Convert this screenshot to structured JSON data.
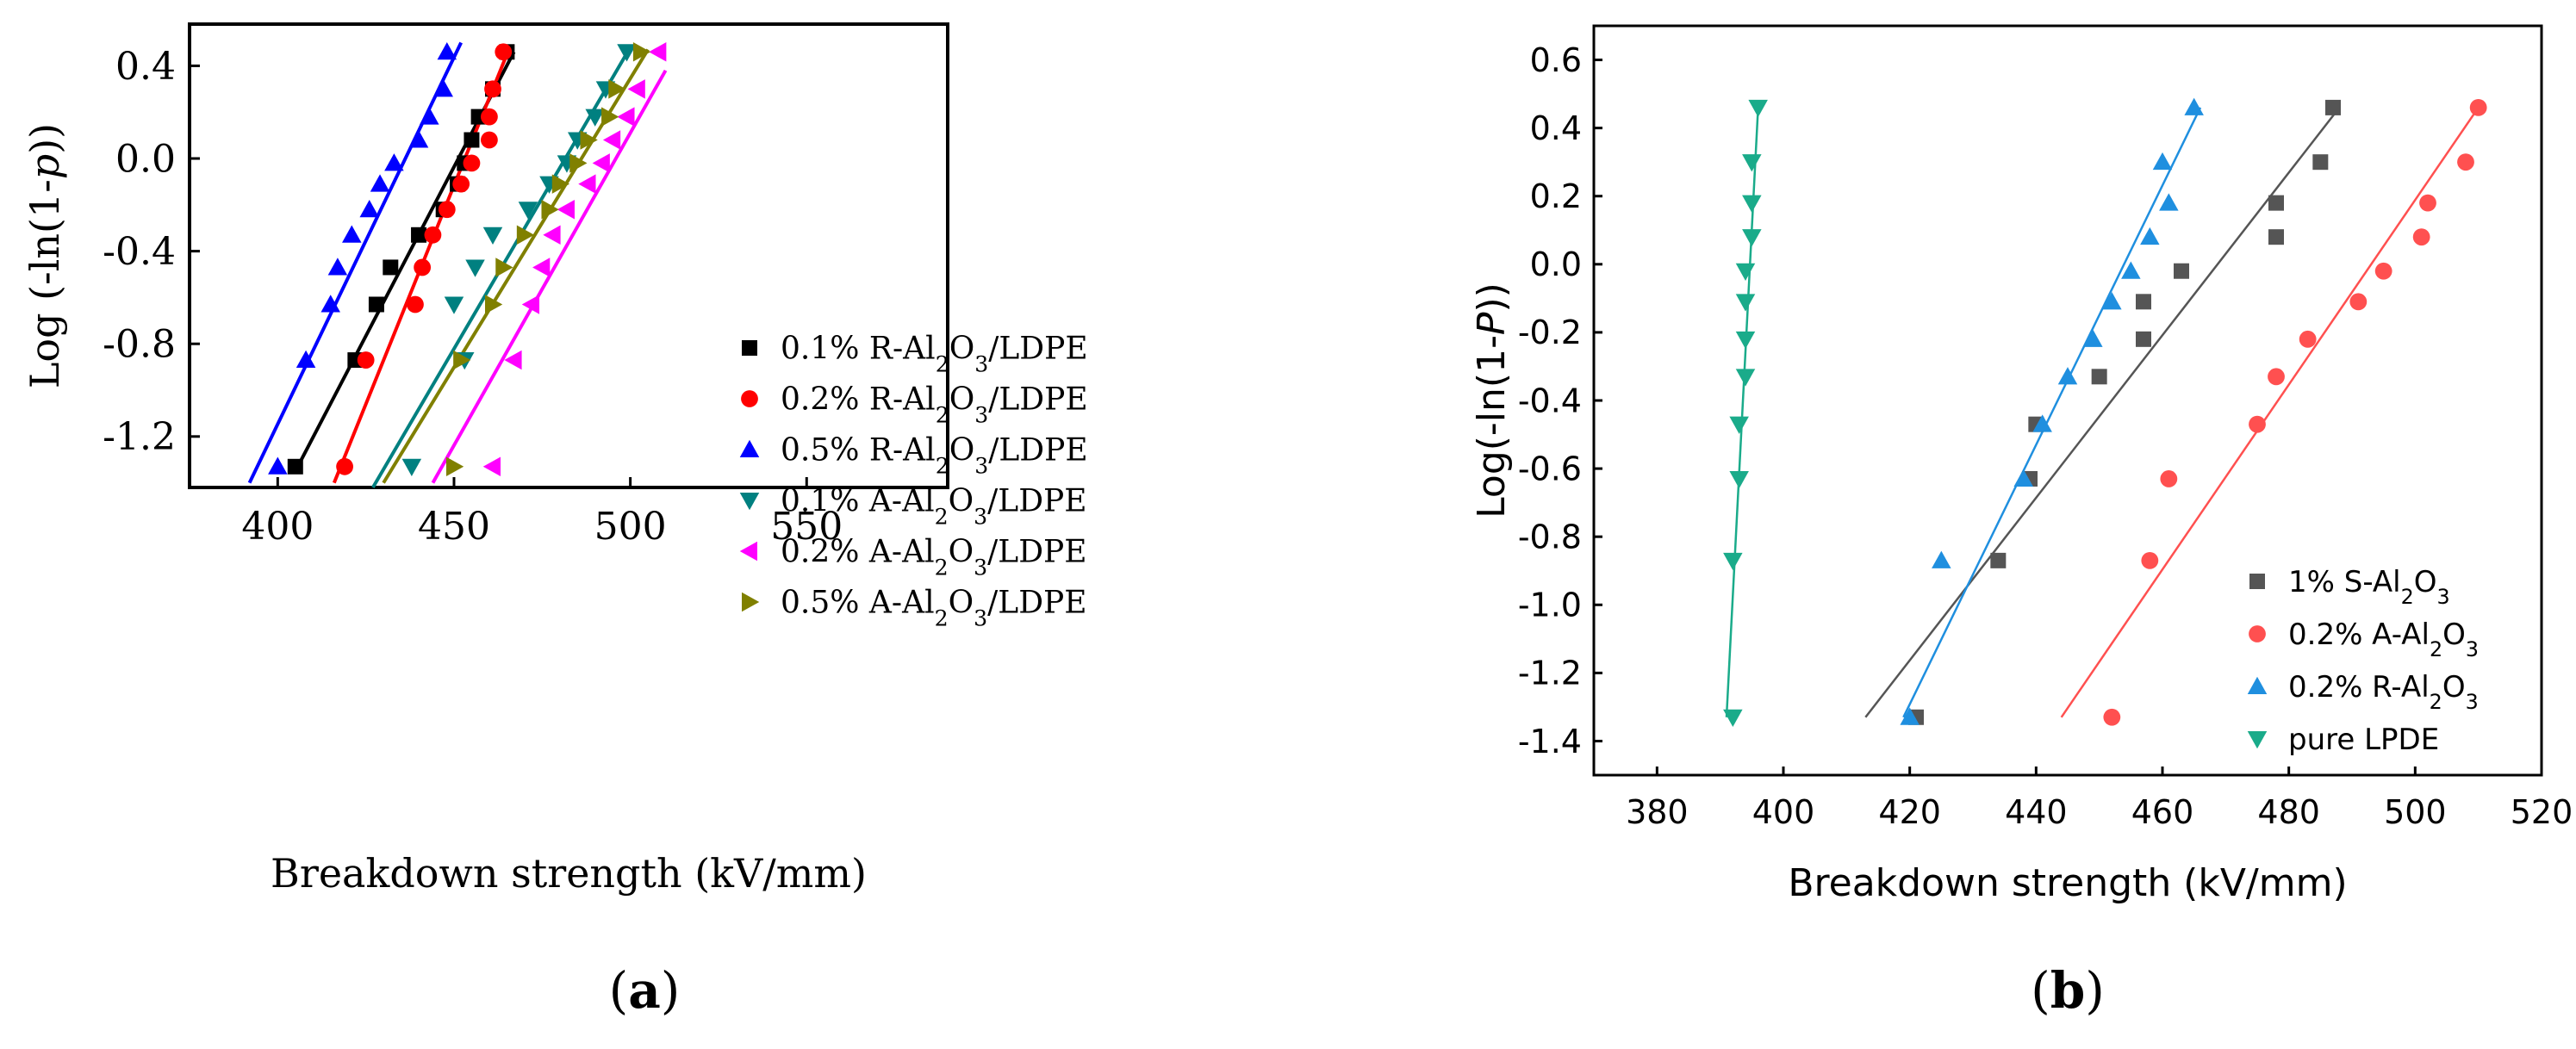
{
  "chart_data": [
    {
      "type": "scatter",
      "panel_label": "(a)",
      "xlabel": "Breakdown strength (kV/mm)",
      "ylabel_prefix": "Log (-ln(1-",
      "ylabel_var": "p",
      "ylabel_suffix": "))",
      "xlim": [
        375,
        590
      ],
      "ylim": [
        -1.42,
        0.58
      ],
      "xticks": [
        400,
        450,
        500,
        550
      ],
      "yticks": [
        -1.2,
        -0.8,
        -0.4,
        0.0,
        0.4
      ],
      "ytick_labels": [
        "-1.2",
        "-0.8",
        "-0.4",
        "0.0",
        "0.4"
      ],
      "y_levels": [
        -1.33,
        -0.87,
        -0.63,
        -0.47,
        -0.33,
        -0.22,
        -0.11,
        -0.02,
        0.08,
        0.18,
        0.3,
        0.46
      ],
      "series": [
        {
          "name": "0.1% R-Al2O3/LDPE",
          "pre": "0.1% R-Al",
          "sub": "2",
          "mid": "O",
          "sub2": "3",
          "post": "/LDPE",
          "color": "#000000",
          "marker": "square",
          "x": [
            405,
            422,
            428,
            432,
            440,
            447,
            451,
            453,
            455,
            457,
            461,
            465
          ],
          "fit": [
            [
              405,
              -1.35
            ],
            [
              467,
              0.46
            ]
          ]
        },
        {
          "name": "0.2% R-Al2O3/LDPE",
          "pre": "0.2% R-Al",
          "sub": "2",
          "mid": "O",
          "sub2": "3",
          "post": "/LDPE",
          "color": "#ff0000",
          "marker": "circle",
          "x": [
            419,
            425,
            439,
            441,
            444,
            448,
            452,
            455,
            460,
            460,
            461,
            464
          ],
          "fit": [
            [
              416,
              -1.4
            ],
            [
              465,
              0.45
            ]
          ]
        },
        {
          "name": "0.5% R-Al2O3/LDPE",
          "pre": "0.5% R-Al",
          "sub": "2",
          "mid": "O",
          "sub2": "3",
          "post": "/LDPE",
          "color": "#0000ff",
          "marker": "triangle-up",
          "x": [
            400,
            408,
            415,
            417,
            421,
            426,
            429,
            433,
            440,
            443,
            447,
            448
          ],
          "fit": [
            [
              392,
              -1.4
            ],
            [
              452,
              0.5
            ]
          ]
        },
        {
          "name": "0.1% A-Al2O3/LDPE",
          "pre": "0.1% A-Al",
          "sub": "2",
          "mid": "O",
          "sub2": "3",
          "post": "/LDPE",
          "color": "#008080",
          "marker": "triangle-down",
          "x": [
            438,
            453,
            450,
            456,
            461,
            471,
            477,
            482,
            485,
            490,
            493,
            499
          ],
          "fit": [
            [
              427,
              -1.42
            ],
            [
              500,
              0.48
            ]
          ]
        },
        {
          "name": "0.2% A-Al2O3/LDPE",
          "pre": "0.2% A-Al",
          "sub": "2",
          "mid": "O",
          "sub2": "3",
          "post": "/LDPE",
          "color": "#ff00ff",
          "marker": "triangle-left",
          "x": [
            461,
            467,
            472,
            475,
            478,
            482,
            488,
            492,
            495,
            499,
            502,
            508
          ],
          "fit": [
            [
              444,
              -1.4
            ],
            [
              510,
              0.38
            ]
          ]
        },
        {
          "name": "0.5% A-Al2O3/LDPE",
          "pre": "0.5% A-Al",
          "sub": "2",
          "mid": "O",
          "sub2": "3",
          "post": "/LDPE",
          "color": "#808000",
          "marker": "triangle-right",
          "x": [
            450,
            452,
            461,
            464,
            470,
            477,
            480,
            485,
            488,
            494,
            496,
            503
          ],
          "fit": [
            [
              430,
              -1.4
            ],
            [
              505,
              0.47
            ]
          ]
        }
      ]
    },
    {
      "type": "scatter",
      "panel_label": "(b)",
      "xlabel": "Breakdown strength (kV/mm)",
      "ylabel_prefix": "Log(-ln(1-",
      "ylabel_var": "P",
      "ylabel_suffix": "))",
      "xlim": [
        370,
        520
      ],
      "ylim": [
        -1.5,
        0.7
      ],
      "xticks": [
        380,
        400,
        420,
        440,
        460,
        480,
        500,
        520
      ],
      "yticks": [
        -1.4,
        -1.2,
        -1.0,
        -0.8,
        -0.6,
        -0.4,
        -0.2,
        0.0,
        0.2,
        0.4,
        0.6
      ],
      "ytick_labels": [
        "-1.4",
        "-1.2",
        "-1.0",
        "-0.8",
        "-0.6",
        "-0.4",
        "-0.2",
        "0.0",
        "0.2",
        "0.4",
        "0.6"
      ],
      "y_levels": [
        -1.33,
        -0.87,
        -0.63,
        -0.47,
        -0.33,
        -0.22,
        -0.11,
        -0.02,
        0.08,
        0.18,
        0.3,
        0.46
      ],
      "series": [
        {
          "name": "1% S-Al2O3",
          "pre": "1% S-Al",
          "sub": "2",
          "mid": "O",
          "sub2": "3",
          "post": "",
          "color": "#555555",
          "marker": "square",
          "x": [
            421,
            434,
            439,
            440,
            450,
            457,
            457,
            463,
            478,
            478,
            485,
            487
          ],
          "fit": [
            [
              413,
              -1.33
            ],
            [
              488,
              0.46
            ]
          ]
        },
        {
          "name": "0.2% A-Al2O3",
          "pre": "0.2% A-Al",
          "sub": "2",
          "mid": "O",
          "sub2": "3",
          "post": "",
          "color": "#ff5050",
          "marker": "circle",
          "x": [
            452,
            458,
            461,
            475,
            478,
            483,
            491,
            495,
            501,
            502,
            508,
            510
          ],
          "fit": [
            [
              444,
              -1.33
            ],
            [
              510,
              0.46
            ]
          ]
        },
        {
          "name": "0.2% R-Al2O3",
          "pre": "0.2% R-Al",
          "sub": "2",
          "mid": "O",
          "sub2": "3",
          "post": "",
          "color": "#1f8fdf",
          "marker": "triangle-up",
          "x": [
            420,
            425,
            438,
            441,
            445,
            449,
            452,
            455,
            458,
            461,
            460,
            465
          ],
          "fit": [
            [
              419,
              -1.33
            ],
            [
              466,
              0.46
            ]
          ]
        },
        {
          "name": "pure LPDE",
          "pre": "pure LPDE",
          "sub": "",
          "mid": "",
          "sub2": "",
          "post": "",
          "color": "#1aab8a",
          "marker": "triangle-down",
          "x": [
            392,
            392,
            393,
            393,
            394,
            394,
            394,
            394,
            395,
            395,
            395,
            396
          ],
          "fit": [
            [
              391,
              -1.33
            ],
            [
              396,
              0.46
            ]
          ]
        }
      ]
    }
  ]
}
